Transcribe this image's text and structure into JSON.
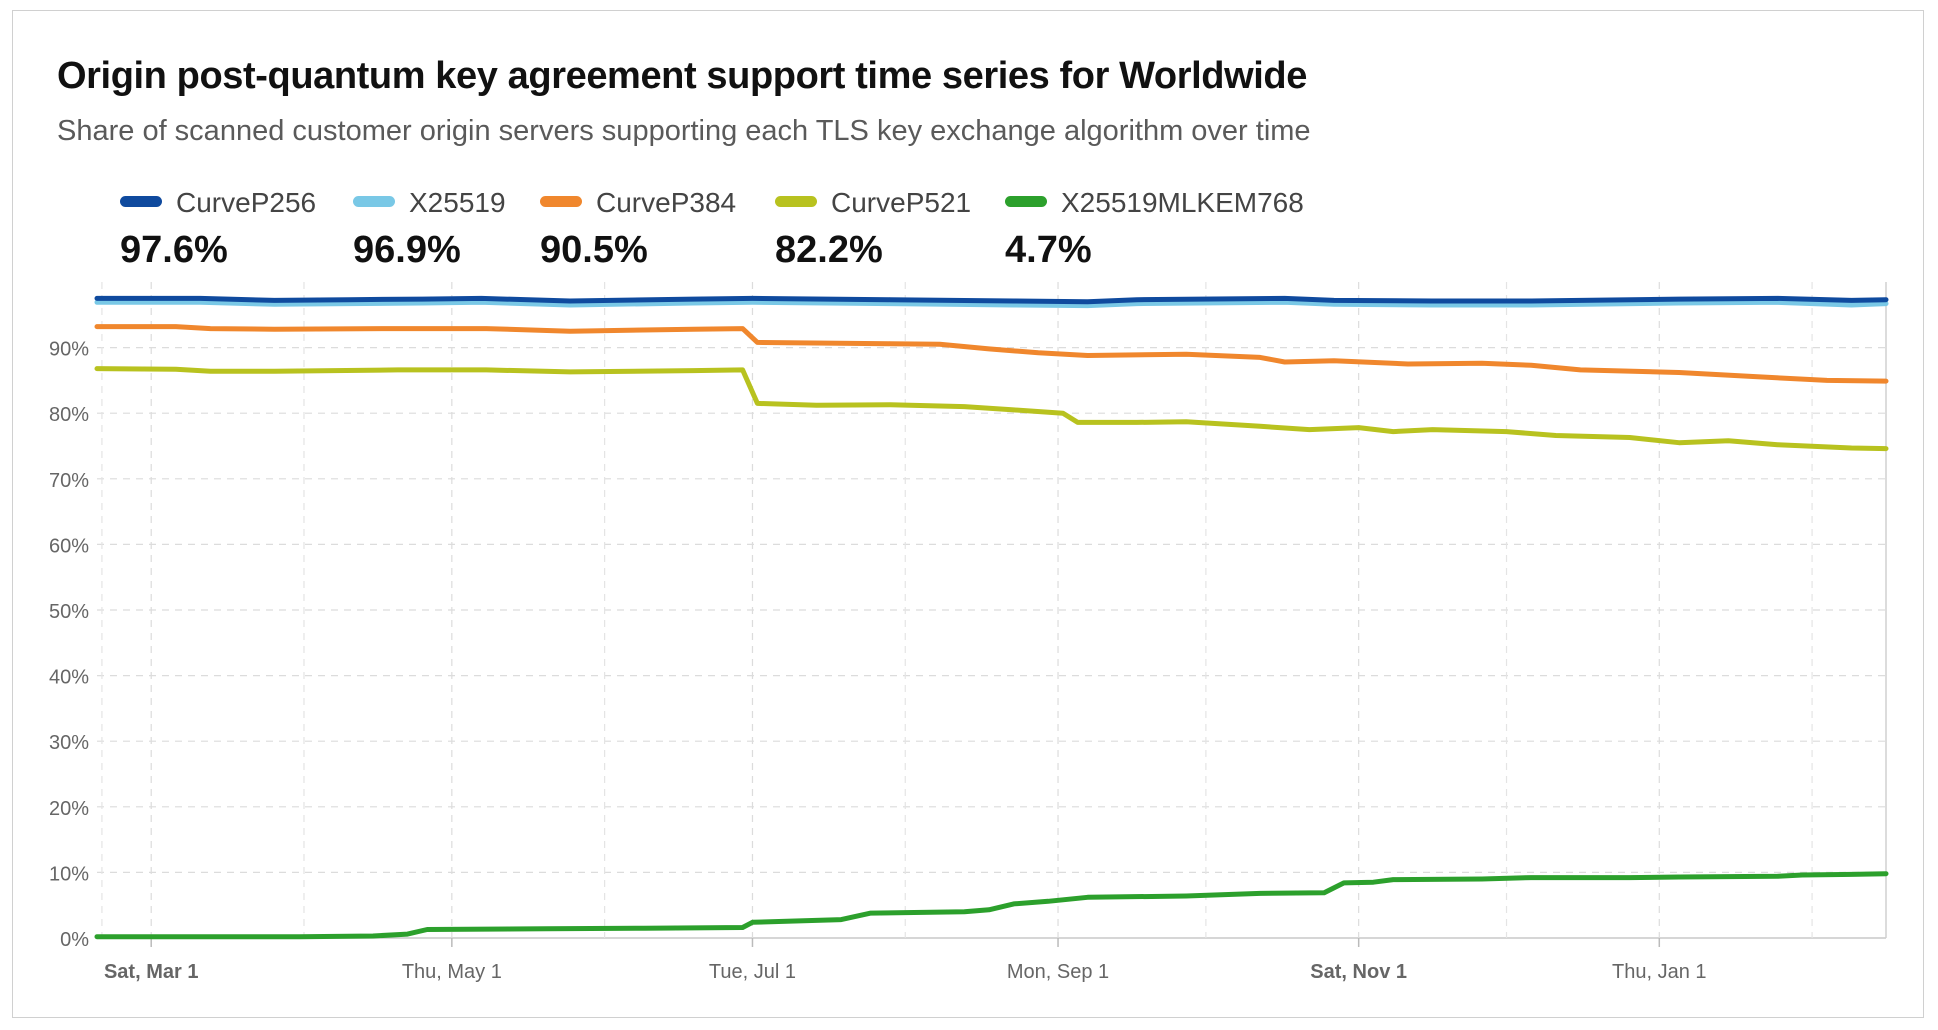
{
  "chart_data": {
    "type": "line",
    "title": "Origin post-quantum key agreement support time series for Worldwide",
    "subtitle": "Share of scanned customer origin servers supporting each TLS key exchange algorithm over time",
    "ylim": [
      0,
      100
    ],
    "yticks": [
      "0%",
      "10%",
      "20%",
      "30%",
      "40%",
      "50%",
      "60%",
      "70%",
      "80%",
      "90%"
    ],
    "xticks": [
      {
        "label": "Sat, Mar 1",
        "day": 0,
        "bold": true
      },
      {
        "label": "Thu, May 1",
        "day": 61,
        "bold": false
      },
      {
        "label": "Tue, Jul 1",
        "day": 122,
        "bold": false
      },
      {
        "label": "Mon, Sep 1",
        "day": 184,
        "bold": false
      },
      {
        "label": "Sat, Nov 1",
        "day": 245,
        "bold": true
      },
      {
        "label": "Thu, Jan 1",
        "day": 306,
        "bold": false
      }
    ],
    "minor_ticks_days": [
      -10,
      31,
      92,
      153,
      214,
      275,
      337
    ],
    "x_range_days": [
      -11,
      352
    ],
    "series": [
      {
        "name": "CurveP256",
        "summary": "97.6%",
        "color": "#0f4a9e",
        "points": [
          [
            -11,
            97.5
          ],
          [
            10,
            97.5
          ],
          [
            25,
            97.2
          ],
          [
            40,
            97.3
          ],
          [
            55,
            97.4
          ],
          [
            67,
            97.5
          ],
          [
            85,
            97.1
          ],
          [
            110,
            97.4
          ],
          [
            122,
            97.5
          ],
          [
            150,
            97.3
          ],
          [
            175,
            97.1
          ],
          [
            190,
            97.0
          ],
          [
            200,
            97.3
          ],
          [
            230,
            97.5
          ],
          [
            240,
            97.2
          ],
          [
            260,
            97.1
          ],
          [
            280,
            97.1
          ],
          [
            310,
            97.4
          ],
          [
            330,
            97.5
          ],
          [
            345,
            97.2
          ],
          [
            352,
            97.3
          ]
        ]
      },
      {
        "name": "X25519",
        "summary": "96.9%",
        "color": "#79c8e6",
        "points": [
          [
            -11,
            96.9
          ],
          [
            10,
            96.9
          ],
          [
            25,
            96.6
          ],
          [
            40,
            96.7
          ],
          [
            55,
            96.8
          ],
          [
            67,
            96.9
          ],
          [
            85,
            96.5
          ],
          [
            110,
            96.8
          ],
          [
            122,
            96.9
          ],
          [
            150,
            96.7
          ],
          [
            175,
            96.5
          ],
          [
            190,
            96.4
          ],
          [
            200,
            96.7
          ],
          [
            230,
            96.9
          ],
          [
            240,
            96.6
          ],
          [
            260,
            96.5
          ],
          [
            280,
            96.5
          ],
          [
            310,
            96.8
          ],
          [
            330,
            96.9
          ],
          [
            345,
            96.5
          ],
          [
            352,
            96.7
          ]
        ]
      },
      {
        "name": "CurveP384",
        "summary": "90.5%",
        "color": "#f0872d",
        "points": [
          [
            -11,
            93.2
          ],
          [
            5,
            93.2
          ],
          [
            12,
            92.9
          ],
          [
            25,
            92.8
          ],
          [
            50,
            92.9
          ],
          [
            68,
            92.9
          ],
          [
            85,
            92.5
          ],
          [
            110,
            92.8
          ],
          [
            120,
            92.9
          ],
          [
            123,
            90.8
          ],
          [
            150,
            90.6
          ],
          [
            160,
            90.5
          ],
          [
            170,
            89.8
          ],
          [
            180,
            89.2
          ],
          [
            190,
            88.8
          ],
          [
            210,
            89.0
          ],
          [
            225,
            88.5
          ],
          [
            230,
            87.8
          ],
          [
            240,
            88.0
          ],
          [
            255,
            87.5
          ],
          [
            270,
            87.6
          ],
          [
            280,
            87.3
          ],
          [
            290,
            86.6
          ],
          [
            310,
            86.2
          ],
          [
            325,
            85.6
          ],
          [
            340,
            85.0
          ],
          [
            352,
            84.9
          ]
        ]
      },
      {
        "name": "CurveP521",
        "summary": "82.2%",
        "color": "#b8c21f",
        "points": [
          [
            -11,
            86.8
          ],
          [
            5,
            86.7
          ],
          [
            12,
            86.4
          ],
          [
            25,
            86.4
          ],
          [
            50,
            86.6
          ],
          [
            68,
            86.6
          ],
          [
            85,
            86.3
          ],
          [
            110,
            86.5
          ],
          [
            120,
            86.6
          ],
          [
            123,
            81.5
          ],
          [
            135,
            81.2
          ],
          [
            150,
            81.3
          ],
          [
            165,
            81.0
          ],
          [
            175,
            80.5
          ],
          [
            185,
            80.0
          ],
          [
            188,
            78.6
          ],
          [
            200,
            78.6
          ],
          [
            210,
            78.7
          ],
          [
            225,
            78.0
          ],
          [
            235,
            77.5
          ],
          [
            245,
            77.8
          ],
          [
            252,
            77.2
          ],
          [
            260,
            77.5
          ],
          [
            275,
            77.2
          ],
          [
            285,
            76.6
          ],
          [
            300,
            76.3
          ],
          [
            310,
            75.5
          ],
          [
            320,
            75.8
          ],
          [
            330,
            75.2
          ],
          [
            345,
            74.7
          ],
          [
            352,
            74.6
          ]
        ]
      },
      {
        "name": "X25519MLKEM768",
        "summary": "4.7%",
        "color": "#2ca02c",
        "points": [
          [
            -11,
            0.2
          ],
          [
            30,
            0.2
          ],
          [
            45,
            0.3
          ],
          [
            52,
            0.6
          ],
          [
            56,
            1.3
          ],
          [
            80,
            1.4
          ],
          [
            100,
            1.5
          ],
          [
            120,
            1.6
          ],
          [
            122,
            2.4
          ],
          [
            140,
            2.8
          ],
          [
            146,
            3.8
          ],
          [
            165,
            4.0
          ],
          [
            170,
            4.3
          ],
          [
            175,
            5.2
          ],
          [
            182,
            5.6
          ],
          [
            190,
            6.2
          ],
          [
            210,
            6.4
          ],
          [
            225,
            6.8
          ],
          [
            238,
            6.9
          ],
          [
            242,
            8.4
          ],
          [
            248,
            8.5
          ],
          [
            252,
            8.9
          ],
          [
            270,
            9.0
          ],
          [
            280,
            9.2
          ],
          [
            300,
            9.2
          ],
          [
            310,
            9.3
          ],
          [
            330,
            9.4
          ],
          [
            335,
            9.6
          ],
          [
            345,
            9.7
          ],
          [
            352,
            9.8
          ]
        ]
      }
    ]
  }
}
